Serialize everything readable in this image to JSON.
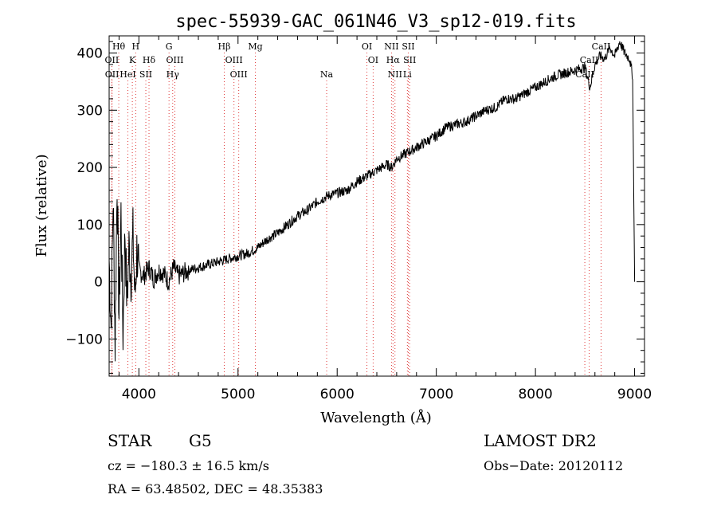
{
  "chart_data": {
    "type": "line",
    "title": "spec-55939-GAC_061N46_V3_sp12-019.fits",
    "xlabel": "Wavelength (Å)",
    "ylabel": "Flux (relative)",
    "xlim": [
      3700,
      9100
    ],
    "ylim": [
      -165,
      430
    ],
    "xticks": [
      4000,
      5000,
      6000,
      7000,
      8000,
      9000
    ],
    "yticks": [
      -100,
      0,
      100,
      200,
      300,
      400
    ],
    "grid": false,
    "series": [
      {
        "values_x": [
          3700,
          3720,
          3740,
          3760,
          3780,
          3800,
          3820,
          3840,
          3860,
          3880,
          3900,
          3920,
          3940,
          3960,
          3980,
          4000,
          4050,
          4100,
          4150,
          4200,
          4250,
          4300,
          4350,
          4400,
          4500,
          4600,
          4700,
          4800,
          4900,
          5000,
          5100,
          5200,
          5300,
          5400,
          5500,
          5600,
          5700,
          5800,
          5900,
          6000,
          6100,
          6200,
          6300,
          6400,
          6500,
          6550,
          6600,
          6700,
          6800,
          6900,
          7000,
          7100,
          7200,
          7300,
          7400,
          7500,
          7600,
          7700,
          7800,
          7900,
          8000,
          8100,
          8200,
          8300,
          8400,
          8500,
          8550,
          8600,
          8650,
          8700,
          8750,
          8800,
          8850,
          8900,
          8950,
          8980,
          9000
        ],
        "values_y": [
          40,
          -80,
          150,
          -110,
          180,
          -60,
          120,
          -90,
          90,
          -40,
          60,
          10,
          80,
          -30,
          55,
          20,
          10,
          25,
          5,
          20,
          15,
          0,
          25,
          10,
          20,
          25,
          30,
          35,
          40,
          45,
          50,
          60,
          75,
          85,
          100,
          115,
          125,
          140,
          150,
          155,
          160,
          175,
          185,
          195,
          205,
          200,
          215,
          225,
          235,
          245,
          255,
          270,
          275,
          280,
          290,
          300,
          305,
          320,
          320,
          330,
          340,
          350,
          360,
          365,
          370,
          375,
          340,
          380,
          395,
          390,
          410,
          395,
          420,
          400,
          390,
          360,
          0
        ]
      }
    ],
    "line_markers": [
      {
        "label": "Hθ",
        "x": 3797,
        "row": 1
      },
      {
        "label": "OII",
        "x": 3727,
        "row": 2
      },
      {
        "label": "OII",
        "x": 3729,
        "row": 3
      },
      {
        "label": "H",
        "x": 3968,
        "row": 1
      },
      {
        "label": "K",
        "x": 3934,
        "row": 2
      },
      {
        "label": "HeI",
        "x": 3889,
        "row": 3
      },
      {
        "label": "Hδ",
        "x": 4102,
        "row": 2
      },
      {
        "label": "SII",
        "x": 4070,
        "row": 3
      },
      {
        "label": "G",
        "x": 4304,
        "row": 1
      },
      {
        "label": "OIII",
        "x": 4363,
        "row": 2
      },
      {
        "label": "Hγ",
        "x": 4341,
        "row": 3
      },
      {
        "label": "Hβ",
        "x": 4861,
        "row": 1
      },
      {
        "label": "OIII",
        "x": 4959,
        "row": 2
      },
      {
        "label": "OIII",
        "x": 5007,
        "row": 3
      },
      {
        "label": "Mg",
        "x": 5175,
        "row": 1
      },
      {
        "label": "Na",
        "x": 5894,
        "row": 3
      },
      {
        "label": "OI",
        "x": 6300,
        "row": 1
      },
      {
        "label": "OI",
        "x": 6363,
        "row": 2
      },
      {
        "label": "NII",
        "x": 6548,
        "row": 1
      },
      {
        "label": "SII",
        "x": 6717,
        "row": 1
      },
      {
        "label": "Hα",
        "x": 6563,
        "row": 2
      },
      {
        "label": "SII",
        "x": 6731,
        "row": 2
      },
      {
        "label": "NII",
        "x": 6583,
        "row": 3
      },
      {
        "label": "Li",
        "x": 6708,
        "row": 3
      },
      {
        "label": "CaII",
        "x": 8662,
        "row": 1
      },
      {
        "label": "CaII",
        "x": 8542,
        "row": 2
      },
      {
        "label": "CaII",
        "x": 8498,
        "row": 3
      }
    ]
  },
  "info": {
    "object_type": "STAR",
    "spectral_class": "G5",
    "survey": "LAMOST DR2",
    "redshift": "cz = −180.3 ± 16.5 km/s",
    "obs_date": "Obs−Date: 20120112",
    "coords": "RA =  63.48502, DEC =  48.35383"
  }
}
